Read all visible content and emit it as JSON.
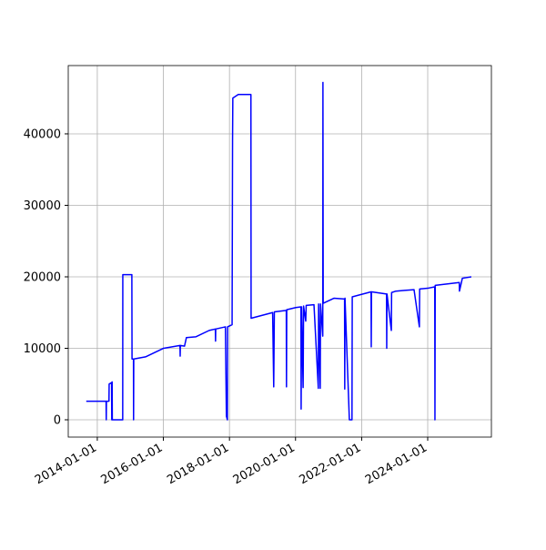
{
  "chart_data": {
    "type": "line",
    "x": [
      "2013-09-01",
      "2014-04-08",
      "2014-04-10",
      "2014-04-12",
      "2014-05-10",
      "2014-05-12",
      "2014-06-08",
      "2014-06-10",
      "2014-06-14",
      "2014-06-16",
      "2014-10-09",
      "2014-10-10",
      "2015-01-18",
      "2015-01-20",
      "2015-02-05",
      "2015-02-06",
      "2015-02-08",
      "2015-06-18",
      "2016-01-04",
      "2016-07-03",
      "2016-07-05",
      "2016-07-07",
      "2016-08-22",
      "2016-09-12",
      "2016-12-24",
      "2017-05-22",
      "2017-07-29",
      "2017-07-31",
      "2017-08-02",
      "2017-11-17",
      "2017-11-28",
      "2017-12-09",
      "2017-12-11",
      "2018-01-30",
      "2018-02-04",
      "2018-02-07",
      "2018-04-08",
      "2018-08-26",
      "2018-08-28",
      "2019-04-23",
      "2019-05-05",
      "2019-05-12",
      "2019-09-21",
      "2019-09-23",
      "2019-09-26",
      "2020-01-04",
      "2020-03-01",
      "2020-03-03",
      "2020-03-08",
      "2020-03-25",
      "2020-03-30",
      "2020-04-23",
      "2020-04-28",
      "2020-07-23",
      "2020-09-09",
      "2020-09-12",
      "2020-09-30",
      "2020-10-03",
      "2020-10-28",
      "2020-10-30",
      "2020-11-02",
      "2021-02-28",
      "2021-06-26",
      "2021-06-28",
      "2021-07-01",
      "2021-08-18",
      "2021-09-16",
      "2021-09-19",
      "2021-12-17",
      "2022-04-15",
      "2022-04-17",
      "2022-04-20",
      "2022-10-03",
      "2022-10-05",
      "2022-10-08",
      "2022-11-25",
      "2022-11-28",
      "2023-01-15",
      "2023-04-23",
      "2023-08-03",
      "2023-10-01",
      "2023-10-04",
      "2024-01-01",
      "2024-03-19",
      "2024-03-21",
      "2024-03-24",
      "2024-12-15",
      "2024-12-17",
      "2025-01-18",
      "2025-04-27"
    ],
    "series": [
      {
        "color": "#0000ff",
        "values": [
          2600,
          2600,
          0,
          2600,
          2600,
          5000,
          5200,
          0,
          5300,
          0,
          0,
          20300,
          20300,
          8500,
          8500,
          0,
          8500,
          8800,
          10000,
          10400,
          8900,
          10400,
          10300,
          11500,
          11600,
          12500,
          12700,
          11000,
          12700,
          13000,
          500,
          0,
          13000,
          13300,
          39000,
          45000,
          45500,
          45500,
          14200,
          15000,
          4600,
          15100,
          15300,
          4600,
          15400,
          15700,
          15800,
          1500,
          15800,
          4500,
          15900,
          13800,
          16000,
          16100,
          4400,
          16200,
          4400,
          16200,
          11700,
          47200,
          16300,
          17000,
          16900,
          4300,
          17000,
          0,
          0,
          17200,
          17500,
          17900,
          10200,
          17900,
          17600,
          10000,
          17600,
          12500,
          17800,
          18000,
          18100,
          18200,
          13000,
          18300,
          18400,
          18600,
          0,
          18800,
          19200,
          18000,
          19800,
          20000
        ]
      }
    ],
    "xlim": [
      "2013-02-14",
      "2025-12-05"
    ],
    "xticks": [
      "2014-01-01",
      "2016-01-01",
      "2018-01-01",
      "2020-01-01",
      "2022-01-01",
      "2024-01-01"
    ],
    "ylim": [
      -2420,
      49550
    ],
    "yticks": [
      0,
      10000,
      20000,
      30000,
      40000
    ],
    "grid": true
  }
}
